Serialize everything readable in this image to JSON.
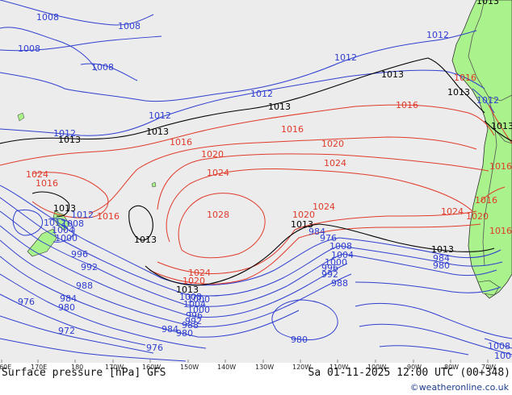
{
  "title": "Surface pressure [hPa] GFS",
  "timestamp": "Sa 01-11-2025 12:00 UTC (00+348)",
  "credit": "©weatheronline.co.uk",
  "longitude_ticks": [
    "160E",
    "170E",
    "180",
    "170W",
    "160W",
    "150W",
    "140W",
    "130W",
    "120W",
    "110W",
    "100W",
    "90W",
    "80W",
    "70W"
  ],
  "colors": {
    "ocean": "#ececec",
    "land": "#aaf28c",
    "low_isobar": "#2f3fd0",
    "high_isobar": "#e03a2a",
    "standard_isobar": "#000000"
  },
  "labels": {
    "blue": [
      {
        "id": "b1",
        "text": "1008"
      },
      {
        "id": "b2",
        "text": "1008"
      },
      {
        "id": "b3",
        "text": "1008"
      },
      {
        "id": "b4",
        "text": "1008"
      },
      {
        "id": "b5",
        "text": "1012"
      },
      {
        "id": "b6",
        "text": "1012"
      },
      {
        "id": "b7",
        "text": "1012"
      },
      {
        "id": "b8",
        "text": "1012"
      },
      {
        "id": "b9",
        "text": "1012"
      },
      {
        "id": "b10",
        "text": "1012"
      },
      {
        "id": "b11",
        "text": "1012"
      },
      {
        "id": "b12",
        "text": "1008"
      },
      {
        "id": "b13",
        "text": "1004"
      },
      {
        "id": "b14",
        "text": "1000"
      },
      {
        "id": "b15",
        "text": "996"
      },
      {
        "id": "b16",
        "text": "992"
      },
      {
        "id": "b17",
        "text": "988"
      },
      {
        "id": "b18",
        "text": "984"
      },
      {
        "id": "b19",
        "text": "980"
      },
      {
        "id": "b20",
        "text": "976"
      },
      {
        "id": "b21",
        "text": "972"
      },
      {
        "id": "b22",
        "text": "976"
      },
      {
        "id": "b23",
        "text": "984"
      },
      {
        "id": "b24",
        "text": "980"
      },
      {
        "id": "b25",
        "text": "1008"
      },
      {
        "id": "b26",
        "text": "1004"
      },
      {
        "id": "b27",
        "text": "1000"
      },
      {
        "id": "b28",
        "text": "996"
      },
      {
        "id": "b29",
        "text": "992"
      },
      {
        "id": "b30",
        "text": "988"
      },
      {
        "id": "b31",
        "text": "984"
      },
      {
        "id": "b32",
        "text": "980"
      },
      {
        "id": "b33",
        "text": "976"
      },
      {
        "id": "b34",
        "text": "1008"
      },
      {
        "id": "b35",
        "text": "1004"
      },
      {
        "id": "b36",
        "text": "1000"
      },
      {
        "id": "b37",
        "text": "996"
      },
      {
        "id": "b38",
        "text": "992"
      },
      {
        "id": "b39",
        "text": "988"
      },
      {
        "id": "b40",
        "text": "984"
      },
      {
        "id": "b41",
        "text": "980"
      },
      {
        "id": "b42",
        "text": "1008"
      },
      {
        "id": "b43",
        "text": "1004"
      },
      {
        "id": "b44",
        "text": "1012"
      },
      {
        "id": "b45",
        "text": "1000"
      }
    ],
    "red": [
      {
        "id": "r1",
        "text": "1016"
      },
      {
        "id": "r2",
        "text": "1016"
      },
      {
        "id": "r3",
        "text": "1016"
      },
      {
        "id": "r4",
        "text": "1020"
      },
      {
        "id": "r5",
        "text": "1020"
      },
      {
        "id": "r6",
        "text": "1024"
      },
      {
        "id": "r7",
        "text": "1024"
      },
      {
        "id": "r8",
        "text": "1028"
      },
      {
        "id": "r9",
        "text": "1024"
      },
      {
        "id": "r10",
        "text": "1020"
      },
      {
        "id": "r11",
        "text": "1024"
      },
      {
        "id": "r12",
        "text": "1016"
      },
      {
        "id": "r13",
        "text": "1016"
      },
      {
        "id": "r14",
        "text": "1024"
      },
      {
        "id": "r15",
        "text": "1020"
      },
      {
        "id": "r16",
        "text": "1024"
      },
      {
        "id": "r17",
        "text": "1020"
      },
      {
        "id": "r18",
        "text": "1016"
      },
      {
        "id": "r19",
        "text": "1016"
      },
      {
        "id": "r20",
        "text": "1016"
      },
      {
        "id": "r21",
        "text": "1016"
      }
    ],
    "black": [
      {
        "id": "k1",
        "text": "1013"
      },
      {
        "id": "k2",
        "text": "1013"
      },
      {
        "id": "k3",
        "text": "1013"
      },
      {
        "id": "k4",
        "text": "1013"
      },
      {
        "id": "k5",
        "text": "1013"
      },
      {
        "id": "k6",
        "text": "1013"
      },
      {
        "id": "k7",
        "text": "1013"
      },
      {
        "id": "k8",
        "text": "1013"
      },
      {
        "id": "k9",
        "text": "1013"
      },
      {
        "id": "k10",
        "text": "1013"
      },
      {
        "id": "k11",
        "text": "1013"
      },
      {
        "id": "k12",
        "text": "1013"
      }
    ]
  }
}
